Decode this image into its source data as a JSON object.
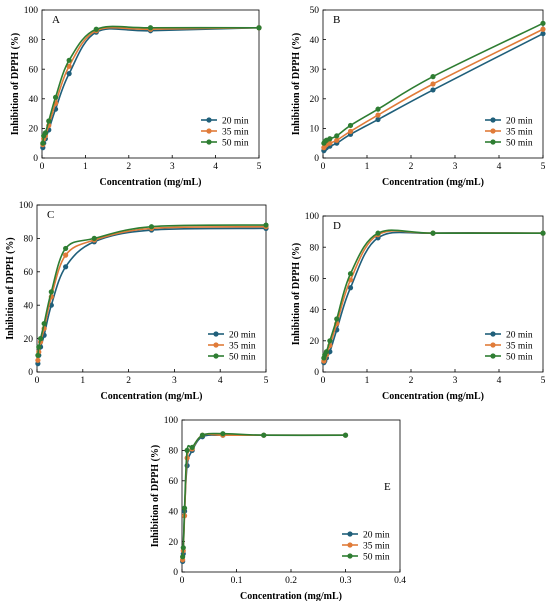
{
  "colors": {
    "20 min": "#1f5f7a",
    "35 min": "#e07b39",
    "50 min": "#2e7d32"
  },
  "chart_data": [
    {
      "type": "line",
      "panel": "A",
      "xlabel": "Concentration (mg/mL)",
      "ylabel": "Inhibition of DPPH (%)",
      "xlim": [
        0,
        5
      ],
      "ylim": [
        0,
        100
      ],
      "xticks": [
        0,
        1,
        2,
        3,
        4,
        5
      ],
      "yticks": [
        0,
        20,
        40,
        60,
        80,
        100
      ],
      "legend": "bottom-right",
      "x": [
        0.0195,
        0.039,
        0.078,
        0.156,
        0.3125,
        0.625,
        1.25,
        2.5,
        5
      ],
      "series": [
        {
          "name": "20 min",
          "values": [
            7,
            10,
            13,
            19,
            33,
            57,
            85,
            86,
            88
          ]
        },
        {
          "name": "35 min",
          "values": [
            9,
            13,
            15,
            22,
            37,
            62,
            86,
            87,
            88
          ]
        },
        {
          "name": "50 min",
          "values": [
            10,
            15,
            17,
            25,
            41,
            66,
            87,
            88,
            88
          ]
        }
      ]
    },
    {
      "type": "line",
      "panel": "B",
      "xlabel": "Concentration (mg/mL)",
      "ylabel": "Inhibition of DPPH (%)",
      "xlim": [
        0,
        5
      ],
      "ylim": [
        0,
        50
      ],
      "xticks": [
        0,
        1,
        2,
        3,
        4,
        5
      ],
      "yticks": [
        0,
        10,
        20,
        30,
        40,
        50
      ],
      "legend": "bottom-right",
      "x": [
        0.0195,
        0.039,
        0.078,
        0.156,
        0.3125,
        0.625,
        1.25,
        2.5,
        5
      ],
      "series": [
        {
          "name": "20 min",
          "values": [
            2.5,
            3,
            3.5,
            4,
            5,
            8,
            13,
            23,
            42
          ]
        },
        {
          "name": "35 min",
          "values": [
            3.5,
            4,
            4.5,
            5,
            6,
            9,
            14.5,
            25,
            43.5
          ]
        },
        {
          "name": "50 min",
          "values": [
            5,
            5.5,
            6,
            6.5,
            7.5,
            11,
            16.5,
            27.5,
            45.5
          ]
        }
      ]
    },
    {
      "type": "line",
      "panel": "C",
      "xlabel": "Concentration (mg/mL)",
      "ylabel": "Inhibition of DPPH (%)",
      "xlim": [
        0,
        5
      ],
      "ylim": [
        0,
        100
      ],
      "xticks": [
        0,
        1,
        2,
        3,
        4,
        5
      ],
      "yticks": [
        0,
        20,
        40,
        60,
        80,
        100
      ],
      "legend": "bottom-right",
      "x": [
        0.0195,
        0.039,
        0.078,
        0.156,
        0.3125,
        0.625,
        1.25,
        2.5,
        5
      ],
      "series": [
        {
          "name": "20 min",
          "values": [
            5,
            10,
            15,
            22,
            40,
            63,
            78,
            85,
            86
          ]
        },
        {
          "name": "35 min",
          "values": [
            7,
            12,
            18,
            26,
            45,
            70,
            79,
            86,
            87
          ]
        },
        {
          "name": "50 min",
          "values": [
            10,
            15,
            20,
            29,
            48,
            74,
            80,
            87,
            88
          ]
        }
      ]
    },
    {
      "type": "line",
      "panel": "D",
      "xlabel": "Concentration (mg/mL)",
      "ylabel": "Inhibition of DPPH (%)",
      "xlim": [
        0,
        5
      ],
      "ylim": [
        0,
        100
      ],
      "xticks": [
        0,
        1,
        2,
        3,
        4,
        5
      ],
      "yticks": [
        0,
        20,
        40,
        60,
        80,
        100
      ],
      "legend": "bottom-right",
      "x": [
        0.0195,
        0.039,
        0.078,
        0.156,
        0.3125,
        0.625,
        1.25,
        2.5,
        5
      ],
      "series": [
        {
          "name": "20 min",
          "values": [
            6,
            7,
            9,
            13,
            27,
            54,
            86,
            89,
            89
          ]
        },
        {
          "name": "35 min",
          "values": [
            7,
            9,
            11,
            17,
            31,
            59,
            88,
            89,
            89
          ]
        },
        {
          "name": "50 min",
          "values": [
            9,
            11,
            13,
            20,
            34,
            63,
            89,
            89,
            89
          ]
        }
      ]
    },
    {
      "type": "line",
      "panel": "E",
      "xlabel": "Concentration (mg/mL)",
      "ylabel": "Inhibition of DPPH (%)",
      "xlim": [
        0,
        0.4
      ],
      "ylim": [
        0,
        100
      ],
      "xticks": [
        0,
        0.1,
        0.2,
        0.3,
        0.4
      ],
      "yticks": [
        0,
        20,
        40,
        60,
        80,
        100
      ],
      "legend": "bottom-right",
      "x": [
        0.00117,
        0.00234,
        0.0047,
        0.0094,
        0.01875,
        0.0375,
        0.075,
        0.15,
        0.3
      ],
      "series": [
        {
          "name": "20 min",
          "values": [
            7,
            12,
            40,
            70,
            80,
            89,
            90,
            90,
            90
          ]
        },
        {
          "name": "35 min",
          "values": [
            8,
            14,
            37,
            75,
            81,
            90,
            90,
            90,
            90
          ]
        },
        {
          "name": "50 min",
          "values": [
            10,
            16,
            42,
            80,
            82,
            90,
            91,
            90,
            90
          ]
        }
      ]
    }
  ]
}
